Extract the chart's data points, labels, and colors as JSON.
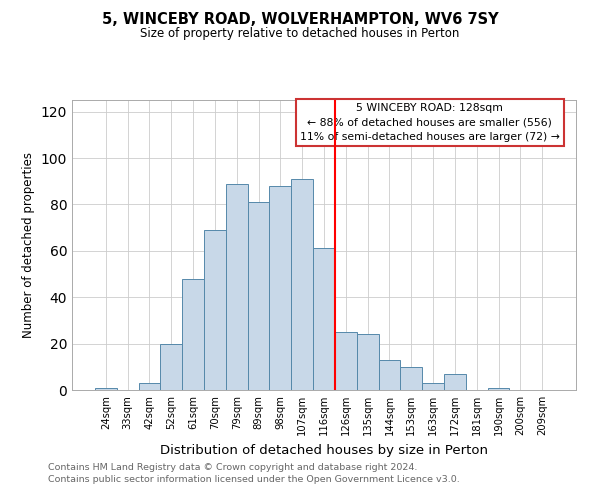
{
  "title": "5, WINCEBY ROAD, WOLVERHAMPTON, WV6 7SY",
  "subtitle": "Size of property relative to detached houses in Perton",
  "xlabel": "Distribution of detached houses by size in Perton",
  "ylabel": "Number of detached properties",
  "footer_line1": "Contains HM Land Registry data © Crown copyright and database right 2024.",
  "footer_line2": "Contains public sector information licensed under the Open Government Licence v3.0.",
  "categories": [
    "24sqm",
    "33sqm",
    "42sqm",
    "52sqm",
    "61sqm",
    "70sqm",
    "79sqm",
    "89sqm",
    "98sqm",
    "107sqm",
    "116sqm",
    "126sqm",
    "135sqm",
    "144sqm",
    "153sqm",
    "163sqm",
    "172sqm",
    "181sqm",
    "190sqm",
    "200sqm",
    "209sqm"
  ],
  "values": [
    1,
    0,
    3,
    20,
    48,
    69,
    89,
    81,
    88,
    91,
    61,
    25,
    24,
    13,
    10,
    3,
    7,
    0,
    1,
    0,
    0
  ],
  "bar_color": "#c8d8e8",
  "bar_edge_color": "#5588aa",
  "vline_x_index": 11,
  "vline_color": "red",
  "annotation_title": "5 WINCEBY ROAD: 128sqm",
  "annotation_line1": "← 88% of detached houses are smaller (556)",
  "annotation_line2": "11% of semi-detached houses are larger (72) →",
  "annotation_box_edge": "#cc3333",
  "ylim": [
    0,
    125
  ],
  "yticks": [
    0,
    20,
    40,
    60,
    80,
    100,
    120
  ],
  "grid_color": "#cccccc",
  "background_color": "#ffffff",
  "title_fontsize": 10.5,
  "subtitle_fontsize": 8.5,
  "footer_fontsize": 6.8,
  "ylabel_fontsize": 8.5,
  "xlabel_fontsize": 9.5
}
